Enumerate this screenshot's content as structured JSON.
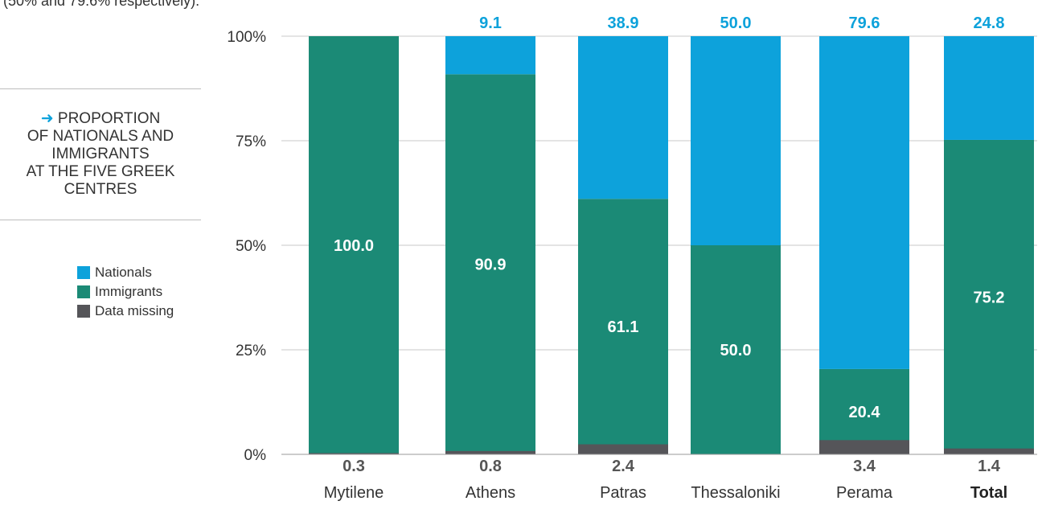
{
  "top_note": "(50% and 79.6% respectively).",
  "side_title": {
    "arrow": "➜",
    "lines": [
      "PROPORTION",
      "OF NATIONALS AND",
      "IMMIGRANTS",
      "AT THE FIVE GREEK",
      "CENTRES"
    ]
  },
  "colors": {
    "nationals": "#0da2db",
    "immigrants": "#1b8a76",
    "missing": "#555559",
    "grid": "#c8c8c8"
  },
  "legend": [
    {
      "label": "Nationals",
      "color": "#0da2db"
    },
    {
      "label": "Immigrants",
      "color": "#1b8a76"
    },
    {
      "label": "Data missing",
      "color": "#555559"
    }
  ],
  "chart_data": {
    "type": "bar",
    "stacked": true,
    "categories": [
      "Mytilene",
      "Athens",
      "Patras",
      "Thessaloniki",
      "Perama",
      "Total"
    ],
    "series": [
      {
        "name": "Nationals",
        "values": [
          0,
          9.1,
          38.9,
          50.0,
          79.6,
          24.8
        ],
        "labels": [
          "",
          "9.1",
          "38.9",
          "50.0",
          "79.6",
          "24.8"
        ]
      },
      {
        "name": "Immigrants",
        "values": [
          100.0,
          90.9,
          61.1,
          50.0,
          20.4,
          75.2
        ],
        "labels": [
          "100.0",
          "90.9",
          "61.1",
          "50.0",
          "20.4",
          "75.2"
        ]
      },
      {
        "name": "Data missing",
        "values": [
          0.3,
          0.8,
          2.4,
          0,
          3.4,
          1.4
        ],
        "labels": [
          "0.3",
          "0.8",
          "2.4",
          "",
          "3.4",
          "1.4"
        ]
      }
    ],
    "y_ticks": [
      "0%",
      "25%",
      "50%",
      "75%",
      "100%"
    ],
    "ylim": [
      0,
      100
    ],
    "grid": true,
    "legend_position": "left"
  }
}
